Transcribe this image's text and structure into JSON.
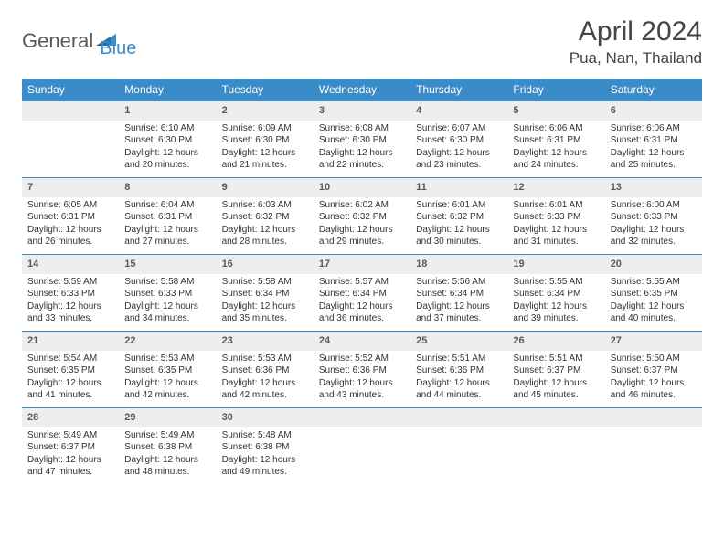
{
  "brand": {
    "part1": "General",
    "part2": "Blue"
  },
  "title": "April 2024",
  "location": "Pua, Nan, Thailand",
  "colors": {
    "header_bg": "#3b8bc9",
    "header_text": "#ffffff",
    "daynum_bg": "#eeeeee",
    "daynum_border": "#3b8bc9",
    "body_text": "#333333",
    "background": "#ffffff"
  },
  "weekdays": [
    "Sunday",
    "Monday",
    "Tuesday",
    "Wednesday",
    "Thursday",
    "Friday",
    "Saturday"
  ],
  "weeks": [
    [
      {
        "n": "",
        "sr": "",
        "ss": "",
        "dl": ""
      },
      {
        "n": "1",
        "sr": "Sunrise: 6:10 AM",
        "ss": "Sunset: 6:30 PM",
        "dl": "Daylight: 12 hours and 20 minutes."
      },
      {
        "n": "2",
        "sr": "Sunrise: 6:09 AM",
        "ss": "Sunset: 6:30 PM",
        "dl": "Daylight: 12 hours and 21 minutes."
      },
      {
        "n": "3",
        "sr": "Sunrise: 6:08 AM",
        "ss": "Sunset: 6:30 PM",
        "dl": "Daylight: 12 hours and 22 minutes."
      },
      {
        "n": "4",
        "sr": "Sunrise: 6:07 AM",
        "ss": "Sunset: 6:30 PM",
        "dl": "Daylight: 12 hours and 23 minutes."
      },
      {
        "n": "5",
        "sr": "Sunrise: 6:06 AM",
        "ss": "Sunset: 6:31 PM",
        "dl": "Daylight: 12 hours and 24 minutes."
      },
      {
        "n": "6",
        "sr": "Sunrise: 6:06 AM",
        "ss": "Sunset: 6:31 PM",
        "dl": "Daylight: 12 hours and 25 minutes."
      }
    ],
    [
      {
        "n": "7",
        "sr": "Sunrise: 6:05 AM",
        "ss": "Sunset: 6:31 PM",
        "dl": "Daylight: 12 hours and 26 minutes."
      },
      {
        "n": "8",
        "sr": "Sunrise: 6:04 AM",
        "ss": "Sunset: 6:31 PM",
        "dl": "Daylight: 12 hours and 27 minutes."
      },
      {
        "n": "9",
        "sr": "Sunrise: 6:03 AM",
        "ss": "Sunset: 6:32 PM",
        "dl": "Daylight: 12 hours and 28 minutes."
      },
      {
        "n": "10",
        "sr": "Sunrise: 6:02 AM",
        "ss": "Sunset: 6:32 PM",
        "dl": "Daylight: 12 hours and 29 minutes."
      },
      {
        "n": "11",
        "sr": "Sunrise: 6:01 AM",
        "ss": "Sunset: 6:32 PM",
        "dl": "Daylight: 12 hours and 30 minutes."
      },
      {
        "n": "12",
        "sr": "Sunrise: 6:01 AM",
        "ss": "Sunset: 6:33 PM",
        "dl": "Daylight: 12 hours and 31 minutes."
      },
      {
        "n": "13",
        "sr": "Sunrise: 6:00 AM",
        "ss": "Sunset: 6:33 PM",
        "dl": "Daylight: 12 hours and 32 minutes."
      }
    ],
    [
      {
        "n": "14",
        "sr": "Sunrise: 5:59 AM",
        "ss": "Sunset: 6:33 PM",
        "dl": "Daylight: 12 hours and 33 minutes."
      },
      {
        "n": "15",
        "sr": "Sunrise: 5:58 AM",
        "ss": "Sunset: 6:33 PM",
        "dl": "Daylight: 12 hours and 34 minutes."
      },
      {
        "n": "16",
        "sr": "Sunrise: 5:58 AM",
        "ss": "Sunset: 6:34 PM",
        "dl": "Daylight: 12 hours and 35 minutes."
      },
      {
        "n": "17",
        "sr": "Sunrise: 5:57 AM",
        "ss": "Sunset: 6:34 PM",
        "dl": "Daylight: 12 hours and 36 minutes."
      },
      {
        "n": "18",
        "sr": "Sunrise: 5:56 AM",
        "ss": "Sunset: 6:34 PM",
        "dl": "Daylight: 12 hours and 37 minutes."
      },
      {
        "n": "19",
        "sr": "Sunrise: 5:55 AM",
        "ss": "Sunset: 6:34 PM",
        "dl": "Daylight: 12 hours and 39 minutes."
      },
      {
        "n": "20",
        "sr": "Sunrise: 5:55 AM",
        "ss": "Sunset: 6:35 PM",
        "dl": "Daylight: 12 hours and 40 minutes."
      }
    ],
    [
      {
        "n": "21",
        "sr": "Sunrise: 5:54 AM",
        "ss": "Sunset: 6:35 PM",
        "dl": "Daylight: 12 hours and 41 minutes."
      },
      {
        "n": "22",
        "sr": "Sunrise: 5:53 AM",
        "ss": "Sunset: 6:35 PM",
        "dl": "Daylight: 12 hours and 42 minutes."
      },
      {
        "n": "23",
        "sr": "Sunrise: 5:53 AM",
        "ss": "Sunset: 6:36 PM",
        "dl": "Daylight: 12 hours and 42 minutes."
      },
      {
        "n": "24",
        "sr": "Sunrise: 5:52 AM",
        "ss": "Sunset: 6:36 PM",
        "dl": "Daylight: 12 hours and 43 minutes."
      },
      {
        "n": "25",
        "sr": "Sunrise: 5:51 AM",
        "ss": "Sunset: 6:36 PM",
        "dl": "Daylight: 12 hours and 44 minutes."
      },
      {
        "n": "26",
        "sr": "Sunrise: 5:51 AM",
        "ss": "Sunset: 6:37 PM",
        "dl": "Daylight: 12 hours and 45 minutes."
      },
      {
        "n": "27",
        "sr": "Sunrise: 5:50 AM",
        "ss": "Sunset: 6:37 PM",
        "dl": "Daylight: 12 hours and 46 minutes."
      }
    ],
    [
      {
        "n": "28",
        "sr": "Sunrise: 5:49 AM",
        "ss": "Sunset: 6:37 PM",
        "dl": "Daylight: 12 hours and 47 minutes."
      },
      {
        "n": "29",
        "sr": "Sunrise: 5:49 AM",
        "ss": "Sunset: 6:38 PM",
        "dl": "Daylight: 12 hours and 48 minutes."
      },
      {
        "n": "30",
        "sr": "Sunrise: 5:48 AM",
        "ss": "Sunset: 6:38 PM",
        "dl": "Daylight: 12 hours and 49 minutes."
      },
      {
        "n": "",
        "sr": "",
        "ss": "",
        "dl": ""
      },
      {
        "n": "",
        "sr": "",
        "ss": "",
        "dl": ""
      },
      {
        "n": "",
        "sr": "",
        "ss": "",
        "dl": ""
      },
      {
        "n": "",
        "sr": "",
        "ss": "",
        "dl": ""
      }
    ]
  ]
}
